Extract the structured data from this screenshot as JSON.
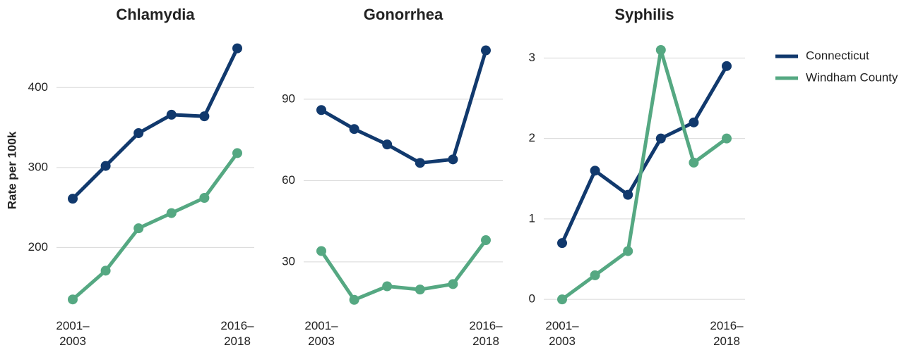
{
  "chart_data": [
    {
      "type": "line",
      "title": "Chlamydia",
      "y_label": "Rate per 100k",
      "categories": [
        "2001–\n2003",
        null,
        null,
        null,
        null,
        "2016–\n2018"
      ],
      "series": [
        {
          "name": "Connecticut",
          "color": "#11396d",
          "values": [
            261,
            302,
            343,
            366,
            364,
            449
          ]
        },
        {
          "name": "Windham County",
          "color": "#55a882",
          "values": [
            135,
            171,
            224,
            243,
            262,
            318
          ]
        }
      ],
      "ylim": [
        122,
        461
      ],
      "yticks": [
        200,
        300,
        400
      ],
      "grid": true,
      "legend": "right"
    },
    {
      "type": "line",
      "title": "Gonorrhea",
      "categories": [
        "2001–\n2003",
        null,
        null,
        null,
        null,
        "2016–\n2018"
      ],
      "series": [
        {
          "name": "Connecticut",
          "color": "#11396d",
          "values": [
            86,
            79,
            73.3,
            66.5,
            67.8,
            108
          ]
        },
        {
          "name": "Windham County",
          "color": "#55a882",
          "values": [
            34,
            16,
            21,
            19.8,
            21.8,
            38
          ]
        }
      ],
      "ylim": [
        12.3,
        112.3
      ],
      "yticks": [
        30,
        60,
        90
      ],
      "grid": true
    },
    {
      "type": "line",
      "title": "Syphilis",
      "categories": [
        "2001–\n2003",
        null,
        null,
        null,
        null,
        "2016–\n2018"
      ],
      "series": [
        {
          "name": "Connecticut",
          "color": "#11396d",
          "values": [
            0.7,
            1.6,
            1.3,
            2.0,
            2.2,
            2.9
          ]
        },
        {
          "name": "Windham County",
          "color": "#55a882",
          "values": [
            0,
            0.3,
            0.6,
            3.1,
            1.7,
            2.0
          ]
        }
      ],
      "ylim": [
        -0.13,
        3.24
      ],
      "yticks": [
        0,
        1,
        2,
        3
      ],
      "grid": true
    }
  ]
}
